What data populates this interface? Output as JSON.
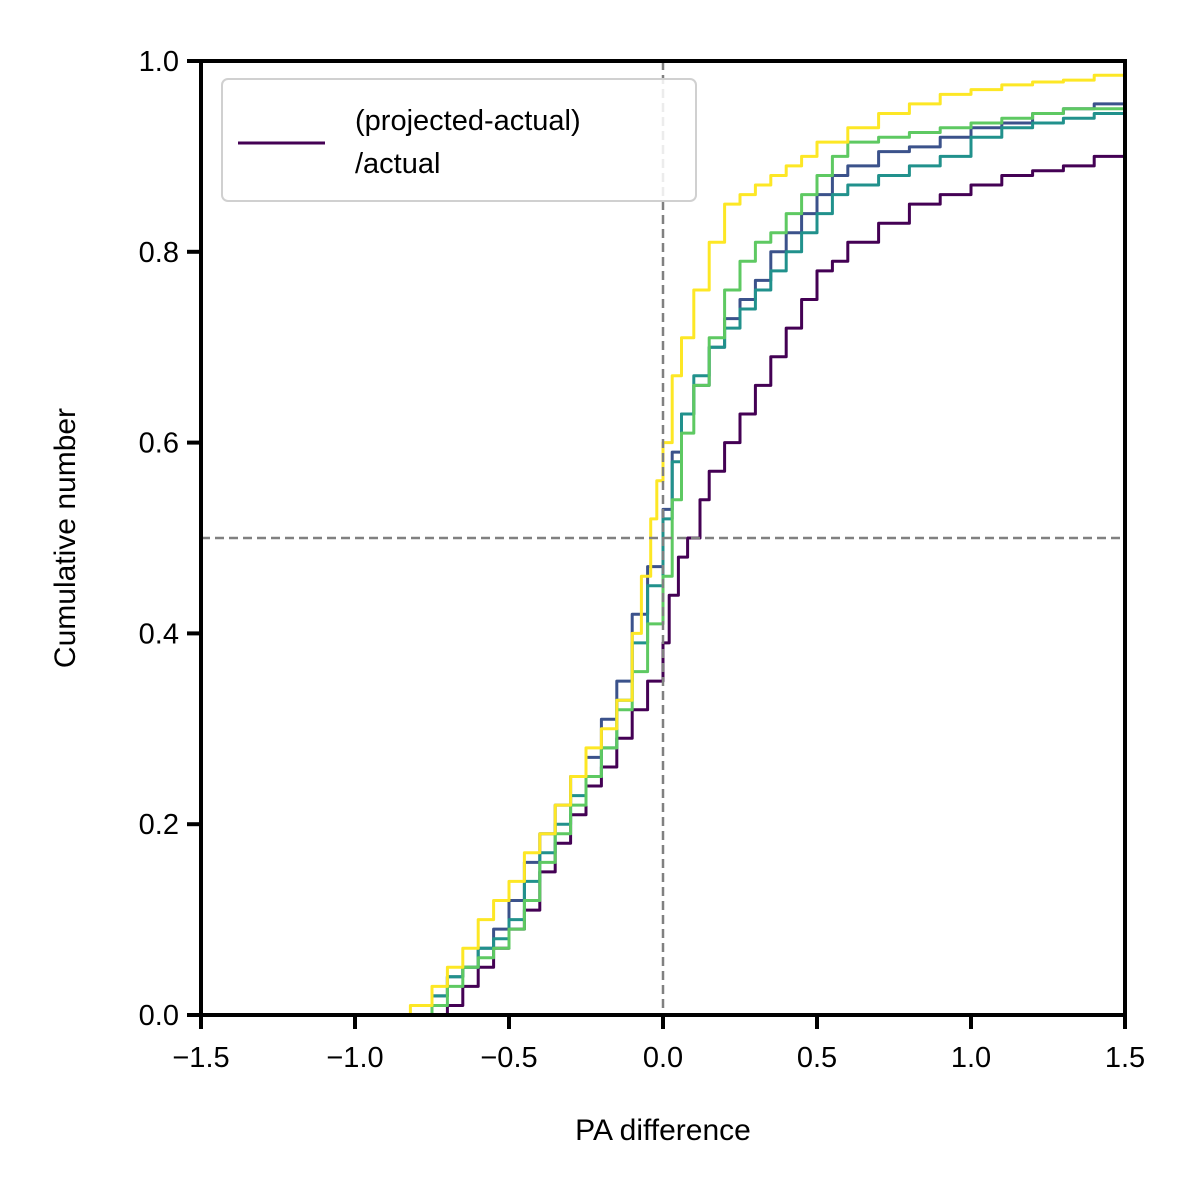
{
  "chart_data": {
    "type": "line",
    "title": "",
    "xlabel": "PA difference",
    "ylabel": "Cumulative number",
    "xlim": [
      -1.5,
      1.5
    ],
    "ylim": [
      0.0,
      1.0
    ],
    "x_ticks": [
      "−1.5",
      "−1.0",
      "−0.5",
      "0.0",
      "0.5",
      "1.0",
      "1.5"
    ],
    "y_ticks": [
      "0.0",
      "0.2",
      "0.4",
      "0.6",
      "0.8",
      "1.0"
    ],
    "grid": false,
    "reference_lines": {
      "vertical_x": 0.0,
      "horizontal_y": 0.5,
      "color": "#808080",
      "style": "dashed"
    },
    "legend": {
      "placement": "upper-left",
      "entries": [
        {
          "label_line1": "(projected-actual)",
          "label_line2": "/actual",
          "color": "#440154"
        }
      ]
    },
    "series": [
      {
        "color": "#440154",
        "points": [
          [
            -0.75,
            0.0
          ],
          [
            -0.7,
            0.01
          ],
          [
            -0.65,
            0.03
          ],
          [
            -0.6,
            0.05
          ],
          [
            -0.55,
            0.07
          ],
          [
            -0.5,
            0.09
          ],
          [
            -0.45,
            0.11
          ],
          [
            -0.4,
            0.15
          ],
          [
            -0.35,
            0.18
          ],
          [
            -0.3,
            0.21
          ],
          [
            -0.25,
            0.24
          ],
          [
            -0.2,
            0.26
          ],
          [
            -0.15,
            0.29
          ],
          [
            -0.1,
            0.32
          ],
          [
            -0.05,
            0.35
          ],
          [
            0.0,
            0.39
          ],
          [
            0.02,
            0.44
          ],
          [
            0.05,
            0.48
          ],
          [
            0.08,
            0.5
          ],
          [
            0.12,
            0.54
          ],
          [
            0.15,
            0.57
          ],
          [
            0.2,
            0.6
          ],
          [
            0.25,
            0.63
          ],
          [
            0.3,
            0.66
          ],
          [
            0.35,
            0.69
          ],
          [
            0.4,
            0.72
          ],
          [
            0.45,
            0.75
          ],
          [
            0.5,
            0.78
          ],
          [
            0.55,
            0.79
          ],
          [
            0.6,
            0.81
          ],
          [
            0.7,
            0.83
          ],
          [
            0.8,
            0.85
          ],
          [
            0.9,
            0.86
          ],
          [
            1.0,
            0.87
          ],
          [
            1.1,
            0.88
          ],
          [
            1.2,
            0.885
          ],
          [
            1.3,
            0.89
          ],
          [
            1.4,
            0.9
          ],
          [
            1.5,
            0.91
          ]
        ]
      },
      {
        "color": "#3b528b",
        "points": [
          [
            -0.82,
            0.0
          ],
          [
            -0.75,
            0.02
          ],
          [
            -0.7,
            0.04
          ],
          [
            -0.65,
            0.05
          ],
          [
            -0.6,
            0.07
          ],
          [
            -0.55,
            0.09
          ],
          [
            -0.5,
            0.12
          ],
          [
            -0.45,
            0.16
          ],
          [
            -0.4,
            0.19
          ],
          [
            -0.35,
            0.22
          ],
          [
            -0.3,
            0.25
          ],
          [
            -0.25,
            0.27
          ],
          [
            -0.2,
            0.31
          ],
          [
            -0.15,
            0.35
          ],
          [
            -0.1,
            0.42
          ],
          [
            -0.05,
            0.47
          ],
          [
            0.0,
            0.53
          ],
          [
            0.03,
            0.59
          ],
          [
            0.06,
            0.63
          ],
          [
            0.1,
            0.66
          ],
          [
            0.15,
            0.7
          ],
          [
            0.2,
            0.73
          ],
          [
            0.25,
            0.75
          ],
          [
            0.3,
            0.77
          ],
          [
            0.35,
            0.8
          ],
          [
            0.4,
            0.82
          ],
          [
            0.45,
            0.84
          ],
          [
            0.5,
            0.86
          ],
          [
            0.55,
            0.88
          ],
          [
            0.6,
            0.89
          ],
          [
            0.7,
            0.905
          ],
          [
            0.8,
            0.91
          ],
          [
            0.9,
            0.92
          ],
          [
            1.0,
            0.93
          ],
          [
            1.1,
            0.935
          ],
          [
            1.2,
            0.945
          ],
          [
            1.3,
            0.95
          ],
          [
            1.4,
            0.955
          ],
          [
            1.5,
            0.962
          ]
        ]
      },
      {
        "color": "#21918c",
        "points": [
          [
            -0.8,
            0.0
          ],
          [
            -0.75,
            0.02
          ],
          [
            -0.7,
            0.04
          ],
          [
            -0.65,
            0.05
          ],
          [
            -0.6,
            0.07
          ],
          [
            -0.55,
            0.08
          ],
          [
            -0.5,
            0.1
          ],
          [
            -0.45,
            0.14
          ],
          [
            -0.4,
            0.17
          ],
          [
            -0.35,
            0.2
          ],
          [
            -0.3,
            0.23
          ],
          [
            -0.25,
            0.25
          ],
          [
            -0.2,
            0.28
          ],
          [
            -0.15,
            0.33
          ],
          [
            -0.1,
            0.39
          ],
          [
            -0.05,
            0.45
          ],
          [
            0.0,
            0.52
          ],
          [
            0.03,
            0.58
          ],
          [
            0.06,
            0.63
          ],
          [
            0.1,
            0.67
          ],
          [
            0.15,
            0.7
          ],
          [
            0.2,
            0.72
          ],
          [
            0.25,
            0.74
          ],
          [
            0.3,
            0.76
          ],
          [
            0.35,
            0.78
          ],
          [
            0.4,
            0.8
          ],
          [
            0.45,
            0.82
          ],
          [
            0.5,
            0.84
          ],
          [
            0.55,
            0.86
          ],
          [
            0.6,
            0.87
          ],
          [
            0.7,
            0.88
          ],
          [
            0.8,
            0.89
          ],
          [
            0.9,
            0.9
          ],
          [
            1.0,
            0.92
          ],
          [
            1.1,
            0.93
          ],
          [
            1.2,
            0.935
          ],
          [
            1.3,
            0.94
          ],
          [
            1.4,
            0.945
          ],
          [
            1.5,
            0.95
          ]
        ]
      },
      {
        "color": "#5ec962",
        "points": [
          [
            -0.8,
            0.0
          ],
          [
            -0.75,
            0.01
          ],
          [
            -0.7,
            0.03
          ],
          [
            -0.65,
            0.05
          ],
          [
            -0.6,
            0.06
          ],
          [
            -0.55,
            0.07
          ],
          [
            -0.5,
            0.09
          ],
          [
            -0.45,
            0.12
          ],
          [
            -0.4,
            0.16
          ],
          [
            -0.35,
            0.19
          ],
          [
            -0.3,
            0.22
          ],
          [
            -0.25,
            0.25
          ],
          [
            -0.2,
            0.28
          ],
          [
            -0.15,
            0.32
          ],
          [
            -0.1,
            0.36
          ],
          [
            -0.05,
            0.41
          ],
          [
            0.0,
            0.46
          ],
          [
            0.03,
            0.54
          ],
          [
            0.06,
            0.61
          ],
          [
            0.1,
            0.66
          ],
          [
            0.15,
            0.71
          ],
          [
            0.2,
            0.76
          ],
          [
            0.25,
            0.79
          ],
          [
            0.3,
            0.81
          ],
          [
            0.35,
            0.82
          ],
          [
            0.4,
            0.84
          ],
          [
            0.45,
            0.86
          ],
          [
            0.5,
            0.88
          ],
          [
            0.55,
            0.9
          ],
          [
            0.6,
            0.915
          ],
          [
            0.7,
            0.92
          ],
          [
            0.8,
            0.925
          ],
          [
            0.9,
            0.93
          ],
          [
            1.0,
            0.935
          ],
          [
            1.1,
            0.94
          ],
          [
            1.2,
            0.945
          ],
          [
            1.3,
            0.95
          ],
          [
            1.4,
            0.95
          ],
          [
            1.5,
            0.955
          ]
        ]
      },
      {
        "color": "#fde725",
        "points": [
          [
            -0.88,
            0.0
          ],
          [
            -0.82,
            0.01
          ],
          [
            -0.75,
            0.03
          ],
          [
            -0.7,
            0.05
          ],
          [
            -0.65,
            0.07
          ],
          [
            -0.6,
            0.1
          ],
          [
            -0.55,
            0.12
          ],
          [
            -0.5,
            0.14
          ],
          [
            -0.45,
            0.17
          ],
          [
            -0.4,
            0.19
          ],
          [
            -0.35,
            0.22
          ],
          [
            -0.3,
            0.25
          ],
          [
            -0.25,
            0.28
          ],
          [
            -0.2,
            0.3
          ],
          [
            -0.15,
            0.33
          ],
          [
            -0.1,
            0.4
          ],
          [
            -0.07,
            0.46
          ],
          [
            -0.04,
            0.52
          ],
          [
            -0.02,
            0.56
          ],
          [
            0.0,
            0.6
          ],
          [
            0.03,
            0.67
          ],
          [
            0.06,
            0.71
          ],
          [
            0.1,
            0.76
          ],
          [
            0.15,
            0.81
          ],
          [
            0.2,
            0.85
          ],
          [
            0.25,
            0.86
          ],
          [
            0.3,
            0.87
          ],
          [
            0.35,
            0.88
          ],
          [
            0.4,
            0.89
          ],
          [
            0.45,
            0.9
          ],
          [
            0.5,
            0.915
          ],
          [
            0.6,
            0.93
          ],
          [
            0.7,
            0.945
          ],
          [
            0.8,
            0.955
          ],
          [
            0.9,
            0.965
          ],
          [
            1.0,
            0.97
          ],
          [
            1.1,
            0.975
          ],
          [
            1.2,
            0.978
          ],
          [
            1.3,
            0.98
          ],
          [
            1.4,
            0.985
          ],
          [
            1.5,
            0.985
          ]
        ]
      }
    ]
  }
}
